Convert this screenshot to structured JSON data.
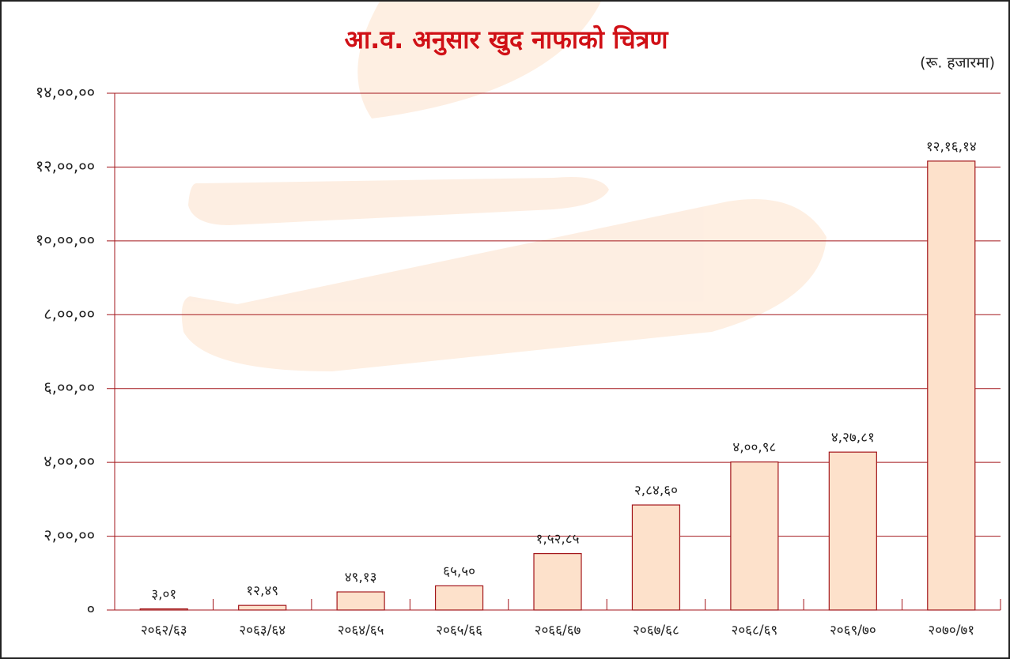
{
  "chart_data": {
    "type": "bar",
    "title": "आ.व. अनुसार खुद नाफाको चित्रण",
    "subtitle": "(रू. हजारमा)",
    "categories": [
      "२०६२/६३",
      "२०६३/६४",
      "२०६४/६५",
      "२०६५/६६",
      "२०६६/६७",
      "२०६७/६८",
      "२०६८/६९",
      "२०६९/७०",
      "२०७०/७१"
    ],
    "values": [
      301,
      1249,
      4913,
      6550,
      15285,
      28460,
      40098,
      42781,
      121614
    ],
    "value_labels": [
      "३,०१",
      "१२,४९",
      "४९,१३",
      "६५,५०",
      "१,५२,८५",
      "२,८४,६०",
      "४,००,९८",
      "४,२७,८१",
      "१२,१६,१४"
    ],
    "color": "#fde1cb",
    "edge_color": "#a3161b",
    "grid_color": "#a3161b",
    "title_color": "#d01016",
    "ylim": [
      0,
      140000
    ],
    "yticks": [
      {
        "value": 0,
        "label": "०"
      },
      {
        "value": 20000,
        "label": "२,००,००"
      },
      {
        "value": 40000,
        "label": "४,००,००"
      },
      {
        "value": 60000,
        "label": "६,००,००"
      },
      {
        "value": 80000,
        "label": "८,००,००"
      },
      {
        "value": 100000,
        "label": "१०,००,००"
      },
      {
        "value": 120000,
        "label": "१२,००,००"
      },
      {
        "value": 140000,
        "label": "१४,००,००"
      }
    ],
    "grid": true
  }
}
